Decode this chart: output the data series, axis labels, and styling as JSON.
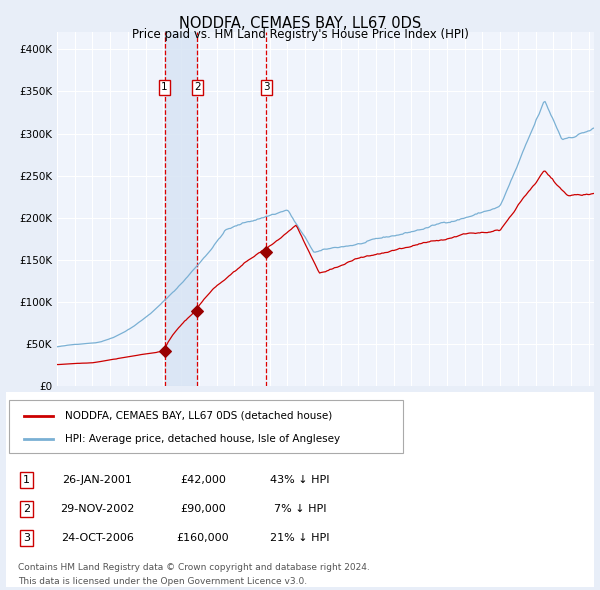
{
  "title": "NODDFA, CEMAES BAY, LL67 0DS",
  "subtitle": "Price paid vs. HM Land Registry's House Price Index (HPI)",
  "legend_red": "NODDFA, CEMAES BAY, LL67 0DS (detached house)",
  "legend_blue": "HPI: Average price, detached house, Isle of Anglesey",
  "transactions": [
    {
      "num": 1,
      "date": "26-JAN-2001",
      "price": 42000,
      "pct": "43%",
      "x_year": 2001.07
    },
    {
      "num": 2,
      "date": "29-NOV-2002",
      "price": 90000,
      "pct": "7%",
      "x_year": 2002.91
    },
    {
      "num": 3,
      "date": "24-OCT-2006",
      "price": 160000,
      "pct": "21%",
      "x_year": 2006.81
    }
  ],
  "footnote1": "Contains HM Land Registry data © Crown copyright and database right 2024.",
  "footnote2": "This data is licensed under the Open Government Licence v3.0.",
  "ylim": [
    0,
    420000
  ],
  "xlim_start": 1995.0,
  "xlim_end": 2025.3,
  "bg_color": "#e8eef8",
  "plot_bg": "#f0f4fc",
  "grid_color": "#ffffff",
  "red_line_color": "#cc0000",
  "blue_line_color": "#7ab0d4",
  "vline_color": "#dd0000",
  "highlight_fill": "#d8e4f4",
  "marker_color": "#990000",
  "panel_bg": "#ffffff"
}
